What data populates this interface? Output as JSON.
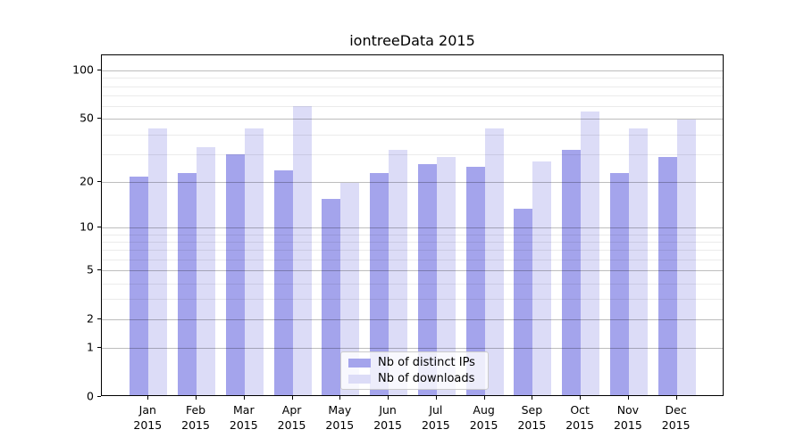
{
  "chart_data": {
    "type": "bar",
    "title": "iontreeData 2015",
    "categories": [
      "Jan",
      "Feb",
      "Mar",
      "Apr",
      "May",
      "Jun",
      "Jul",
      "Aug",
      "Sep",
      "Oct",
      "Nov",
      "Dec"
    ],
    "category_year": "2015",
    "series": [
      {
        "name": "Nb of distinct IPs",
        "color": "#a4a4ec",
        "values": [
          21,
          22,
          29,
          23,
          15,
          22,
          25,
          24,
          13,
          31,
          22,
          28
        ]
      },
      {
        "name": "Nb of downloads",
        "color": "#dcdcf7",
        "values": [
          42,
          32,
          42,
          58,
          19,
          31,
          28,
          42,
          26,
          54,
          42,
          48
        ]
      }
    ],
    "xlabel": "",
    "ylabel": "",
    "y_scale": "log(1+v)",
    "y_ticks": [
      0,
      1,
      2,
      5,
      10,
      20,
      50,
      100
    ],
    "y_minor_ticks": [
      3,
      4,
      6,
      7,
      8,
      9,
      30,
      40,
      60,
      70,
      80,
      90
    ],
    "ylim": [
      0,
      124
    ],
    "grid": "on, drawn above bars",
    "legend_position": "bottom-center"
  }
}
